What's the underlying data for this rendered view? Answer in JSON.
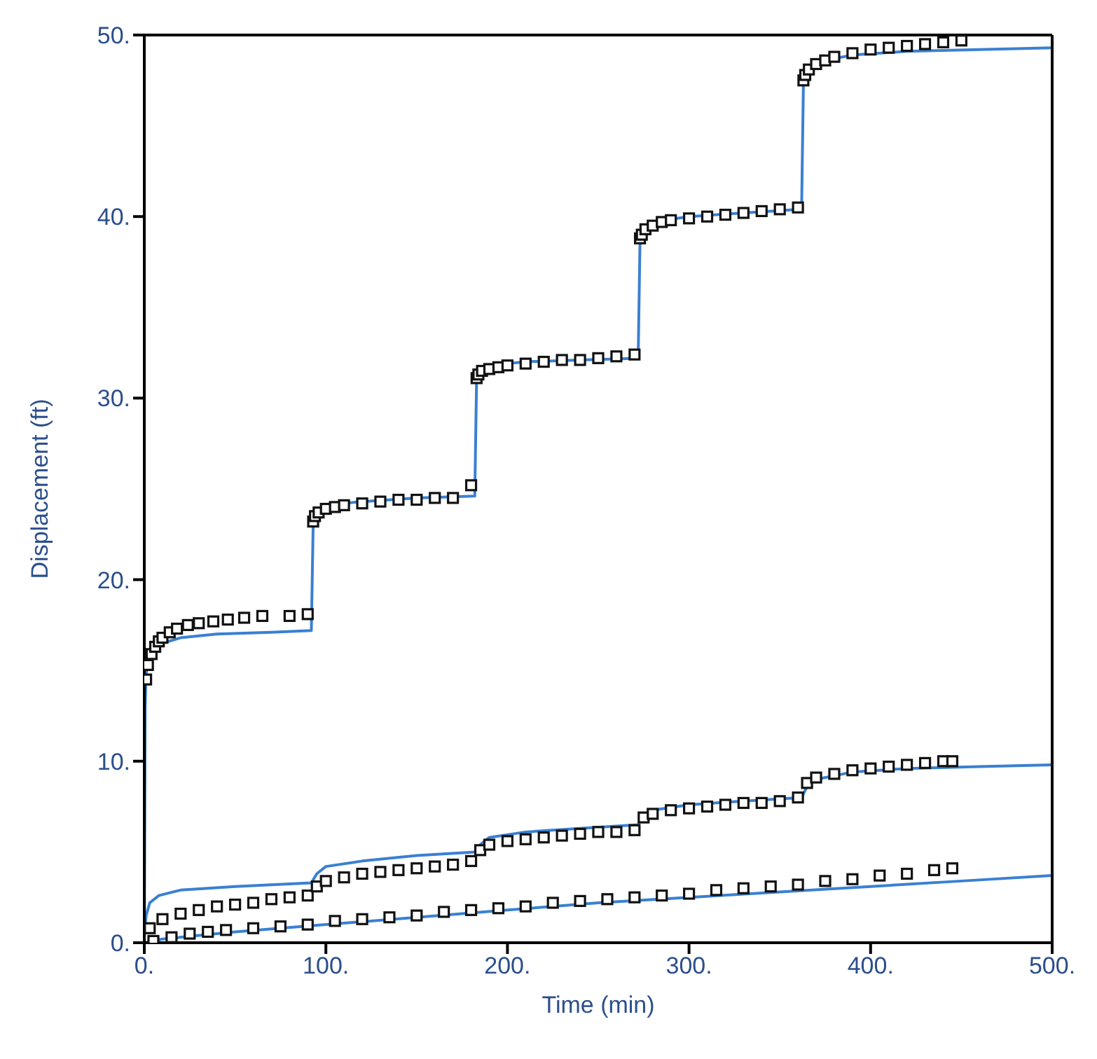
{
  "chart_data": {
    "type": "scatter",
    "xlabel": "Time (min)",
    "ylabel": "Displacement (ft)",
    "xlim": [
      0,
      500
    ],
    "ylim": [
      0,
      50
    ],
    "xticks": [
      {
        "value": 0,
        "label": "0."
      },
      {
        "value": 100,
        "label": "100."
      },
      {
        "value": 200,
        "label": "200."
      },
      {
        "value": 300,
        "label": "300."
      },
      {
        "value": 400,
        "label": "400."
      },
      {
        "value": 500,
        "label": "500."
      }
    ],
    "yticks": [
      {
        "value": 0,
        "label": "0."
      },
      {
        "value": 10,
        "label": "10."
      },
      {
        "value": 20,
        "label": "20."
      },
      {
        "value": 30,
        "label": "30."
      },
      {
        "value": 40,
        "label": "40."
      },
      {
        "value": 50,
        "label": "50."
      }
    ],
    "grid": false,
    "legend": false,
    "series": [
      {
        "marker": "square",
        "color": "#111111",
        "x": [
          1,
          2,
          4,
          6,
          8,
          10,
          14,
          18,
          24,
          30,
          38,
          46,
          55,
          65,
          80,
          90,
          93,
          94,
          96,
          100,
          105,
          110,
          120,
          130,
          140,
          150,
          160,
          170,
          180,
          183,
          184,
          186,
          190,
          195,
          200,
          210,
          220,
          230,
          240,
          250,
          260,
          270,
          273,
          274,
          276,
          280,
          285,
          290,
          300,
          310,
          320,
          330,
          340,
          350,
          360,
          363,
          364,
          366,
          370,
          375,
          380,
          390,
          400,
          410,
          420,
          430,
          440,
          450
        ],
        "values": [
          14.5,
          15.3,
          15.9,
          16.3,
          16.6,
          16.8,
          17.1,
          17.3,
          17.5,
          17.6,
          17.7,
          17.8,
          17.9,
          18,
          18,
          18.1,
          23.2,
          23.5,
          23.7,
          23.9,
          24,
          24.1,
          24.2,
          24.3,
          24.4,
          24.4,
          24.5,
          24.5,
          25.2,
          31.1,
          31.3,
          31.5,
          31.6,
          31.7,
          31.8,
          31.9,
          32,
          32.1,
          32.1,
          32.2,
          32.3,
          32.4,
          38.8,
          39,
          39.3,
          39.5,
          39.7,
          39.8,
          39.9,
          40,
          40.1,
          40.2,
          40.3,
          40.4,
          40.5,
          47.5,
          47.8,
          48.1,
          48.4,
          48.6,
          48.8,
          49,
          49.2,
          49.3,
          49.4,
          49.5,
          49.6,
          49.7
        ]
      },
      {
        "type": "line",
        "marker": "none",
        "color": "#3a80d2",
        "x": [
          0,
          0.5,
          1,
          3,
          6,
          10,
          20,
          40,
          70,
          92,
          93,
          94,
          96,
          100,
          120,
          150,
          182,
          183,
          184,
          186,
          190,
          210,
          240,
          272,
          273,
          274,
          276,
          280,
          300,
          330,
          362,
          363,
          364,
          366,
          370,
          390,
          420,
          460,
          500
        ],
        "values": [
          0,
          13,
          14.8,
          15.8,
          16.2,
          16.5,
          16.8,
          17,
          17.1,
          17.2,
          23,
          23.6,
          23.9,
          24.1,
          24.3,
          24.5,
          24.6,
          31,
          31.4,
          31.6,
          31.8,
          32,
          32.1,
          32.2,
          38.6,
          39.1,
          39.4,
          39.7,
          40,
          40.2,
          40.4,
          47.3,
          47.8,
          48.2,
          48.5,
          48.9,
          49.1,
          49.2,
          49.3
        ]
      },
      {
        "marker": "square",
        "color": "#111111",
        "x": [
          3,
          10,
          20,
          30,
          40,
          50,
          60,
          70,
          80,
          90,
          95,
          100,
          110,
          120,
          130,
          140,
          150,
          160,
          170,
          180,
          185,
          190,
          200,
          210,
          220,
          230,
          240,
          250,
          260,
          270,
          275,
          280,
          290,
          300,
          310,
          320,
          330,
          340,
          350,
          360,
          365,
          370,
          380,
          390,
          400,
          410,
          420,
          430,
          440,
          445
        ],
        "values": [
          0.8,
          1.3,
          1.6,
          1.8,
          2,
          2.1,
          2.2,
          2.4,
          2.5,
          2.6,
          3.1,
          3.4,
          3.6,
          3.8,
          3.9,
          4,
          4.1,
          4.2,
          4.3,
          4.5,
          5.1,
          5.4,
          5.6,
          5.7,
          5.8,
          5.9,
          6,
          6.1,
          6.1,
          6.2,
          6.9,
          7.1,
          7.3,
          7.4,
          7.5,
          7.6,
          7.7,
          7.7,
          7.8,
          8,
          8.8,
          9.1,
          9.3,
          9.5,
          9.6,
          9.7,
          9.8,
          9.9,
          10,
          10
        ]
      },
      {
        "type": "line",
        "marker": "none",
        "color": "#3a80d2",
        "x": [
          0,
          1,
          3,
          8,
          20,
          50,
          92,
          95,
          100,
          120,
          150,
          182,
          185,
          190,
          210,
          240,
          272,
          275,
          280,
          300,
          330,
          362,
          365,
          370,
          390,
          420,
          460,
          500
        ],
        "values": [
          0.3,
          1.5,
          2.2,
          2.6,
          2.9,
          3.1,
          3.3,
          3.8,
          4.2,
          4.5,
          4.8,
          5,
          5.4,
          5.8,
          6.1,
          6.3,
          6.5,
          7,
          7.3,
          7.6,
          7.8,
          8,
          8.6,
          9,
          9.4,
          9.6,
          9.7,
          9.8
        ]
      },
      {
        "marker": "square",
        "color": "#111111",
        "x": [
          5,
          15,
          25,
          35,
          45,
          60,
          75,
          90,
          105,
          120,
          135,
          150,
          165,
          180,
          195,
          210,
          225,
          240,
          255,
          270,
          285,
          300,
          315,
          330,
          345,
          360,
          375,
          390,
          405,
          420,
          435,
          445
        ],
        "values": [
          0.1,
          0.3,
          0.5,
          0.6,
          0.7,
          0.8,
          0.9,
          1,
          1.2,
          1.3,
          1.4,
          1.5,
          1.7,
          1.8,
          1.9,
          2,
          2.2,
          2.3,
          2.4,
          2.5,
          2.6,
          2.7,
          2.9,
          3,
          3.1,
          3.2,
          3.4,
          3.5,
          3.7,
          3.8,
          4,
          4.1
        ]
      },
      {
        "type": "line",
        "marker": "none",
        "color": "#3a80d2",
        "x": [
          0,
          10,
          50,
          100,
          150,
          200,
          250,
          300,
          350,
          400,
          450,
          500
        ],
        "values": [
          0,
          0.2,
          0.6,
          1,
          1.4,
          1.8,
          2.2,
          2.5,
          2.8,
          3.1,
          3.4,
          3.7
        ]
      }
    ]
  }
}
